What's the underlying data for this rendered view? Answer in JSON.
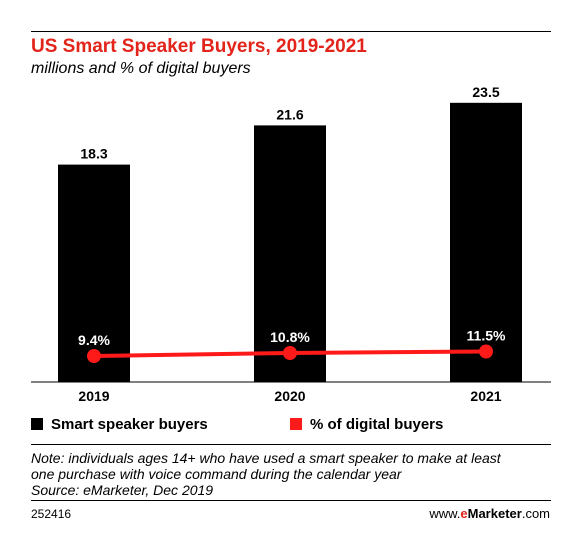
{
  "title": "US Smart Speaker Buyers, 2019-2021",
  "subtitle": "millions and % of digital buyers",
  "chart_data": {
    "type": "bar",
    "categories": [
      "2019",
      "2020",
      "2021"
    ],
    "series": [
      {
        "name": "Smart speaker buyers",
        "type": "bar",
        "values": [
          18.3,
          21.6,
          23.5
        ],
        "labels": [
          "18.3",
          "21.6",
          "23.5"
        ],
        "color": "#000000"
      },
      {
        "name": "% of digital buyers",
        "type": "line",
        "values": [
          9.4,
          10.8,
          11.5
        ],
        "labels": [
          "9.4%",
          "10.8%",
          "11.5%"
        ],
        "color": "#ff1a1a"
      }
    ],
    "title": "US Smart Speaker Buyers, 2019-2021",
    "subtitle": "millions and % of digital buyers",
    "ylim": [
      0,
      25
    ],
    "grid": false,
    "legend": "bottom-left"
  },
  "legend": {
    "bar_label": "Smart speaker buyers",
    "line_label": "% of digital buyers"
  },
  "note": {
    "line1": "Note: individuals ages 14+ who have used a smart speaker to make at least",
    "line2": "one purchase with voice command during the calendar year",
    "line3": "Source: eMarketer, Dec 2019"
  },
  "footer": {
    "id": "252416",
    "brand_prefix": "www.",
    "brand_e": "e",
    "brand_name": "Marketer",
    "brand_suffix": ".com"
  },
  "colors": {
    "title": "#e2241b",
    "bar": "#000000",
    "line": "#ff1a1a"
  }
}
